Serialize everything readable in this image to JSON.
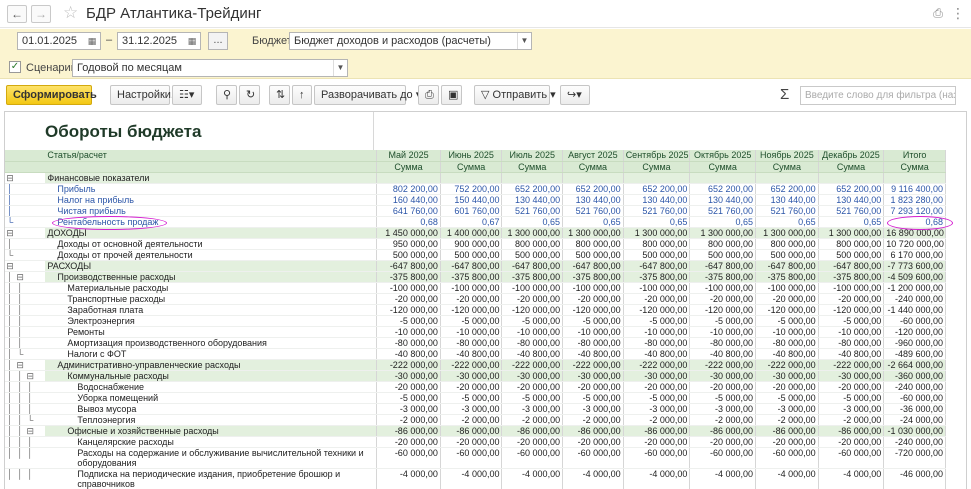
{
  "window": {
    "title": "БДР Атлантика-Трейдинг"
  },
  "params": {
    "date_from": "01.01.2025",
    "date_sep": "–",
    "date_to": "31.12.2025",
    "dots": "...",
    "budget_label": "Бюджет:",
    "budget_value": "Бюджет доходов и расходов (расчеты)",
    "scenario_label": "Сценарий:",
    "scenario_value": "Годовой по месяцам",
    "scenario_checked": true
  },
  "toolbar": {
    "generate": "Сформировать",
    "settings": "Настройки...",
    "expand": "Разворачивать до",
    "send": "Отправить",
    "sigma": "Σ",
    "filter_placeholder": "Введите слово для фильтра (название тов"
  },
  "report": {
    "title": "Обороты бюджета",
    "col_item": "Статья/расчет",
    "months": [
      "Май 2025",
      "Июнь 2025",
      "Июль 2025",
      "Август 2025",
      "Сентябрь 2025",
      "Октябрь 2025",
      "Ноябрь 2025",
      "Декабрь 2025",
      "Итого"
    ],
    "sub": "Сумма",
    "rows": [
      {
        "label": "Финансовые показатели",
        "values": [
          "",
          "",
          "",
          "",
          "",
          "",
          "",
          "",
          ""
        ]
      },
      {
        "label": "Прибыль",
        "values": [
          "802 200,00",
          "752 200,00",
          "652 200,00",
          "652 200,00",
          "652 200,00",
          "652 200,00",
          "652 200,00",
          "652 200,00",
          "9 116 400,00"
        ]
      },
      {
        "label": "Налог на прибыль",
        "values": [
          "160 440,00",
          "150 440,00",
          "130 440,00",
          "130 440,00",
          "130 440,00",
          "130 440,00",
          "130 440,00",
          "130 440,00",
          "1 823 280,00"
        ]
      },
      {
        "label": "Чистая прибыль",
        "values": [
          "641 760,00",
          "601 760,00",
          "521 760,00",
          "521 760,00",
          "521 760,00",
          "521 760,00",
          "521 760,00",
          "521 760,00",
          "7 293 120,00"
        ]
      },
      {
        "label": "Рентабельность продаж",
        "values": [
          "0,68",
          "0,67",
          "0,65",
          "0,65",
          "0,65",
          "0,65",
          "0,65",
          "0,65",
          "0,68"
        ]
      },
      {
        "label": "ДОХОДЫ",
        "values": [
          "1 450 000,00",
          "1 400 000,00",
          "1 300 000,00",
          "1 300 000,00",
          "1 300 000,00",
          "1 300 000,00",
          "1 300 000,00",
          "1 300 000,00",
          "16 890 000,00"
        ]
      },
      {
        "label": "Доходы от основной деятельности",
        "values": [
          "950 000,00",
          "900 000,00",
          "800 000,00",
          "800 000,00",
          "800 000,00",
          "800 000,00",
          "800 000,00",
          "800 000,00",
          "10 720 000,00"
        ]
      },
      {
        "label": "Доходы от прочей деятельности",
        "values": [
          "500 000,00",
          "500 000,00",
          "500 000,00",
          "500 000,00",
          "500 000,00",
          "500 000,00",
          "500 000,00",
          "500 000,00",
          "6 170 000,00"
        ]
      },
      {
        "label": "РАСХОДЫ",
        "values": [
          "-647 800,00",
          "-647 800,00",
          "-647 800,00",
          "-647 800,00",
          "-647 800,00",
          "-647 800,00",
          "-647 800,00",
          "-647 800,00",
          "-7 773 600,00"
        ]
      },
      {
        "label": "Производственные расходы",
        "values": [
          "-375 800,00",
          "-375 800,00",
          "-375 800,00",
          "-375 800,00",
          "-375 800,00",
          "-375 800,00",
          "-375 800,00",
          "-375 800,00",
          "-4 509 600,00"
        ]
      },
      {
        "label": "Материальные расходы",
        "values": [
          "-100 000,00",
          "-100 000,00",
          "-100 000,00",
          "-100 000,00",
          "-100 000,00",
          "-100 000,00",
          "-100 000,00",
          "-100 000,00",
          "-1 200 000,00"
        ]
      },
      {
        "label": "Транспортные расходы",
        "values": [
          "-20 000,00",
          "-20 000,00",
          "-20 000,00",
          "-20 000,00",
          "-20 000,00",
          "-20 000,00",
          "-20 000,00",
          "-20 000,00",
          "-240 000,00"
        ]
      },
      {
        "label": "Заработная плата",
        "values": [
          "-120 000,00",
          "-120 000,00",
          "-120 000,00",
          "-120 000,00",
          "-120 000,00",
          "-120 000,00",
          "-120 000,00",
          "-120 000,00",
          "-1 440 000,00"
        ]
      },
      {
        "label": "Электроэнергия",
        "values": [
          "-5 000,00",
          "-5 000,00",
          "-5 000,00",
          "-5 000,00",
          "-5 000,00",
          "-5 000,00",
          "-5 000,00",
          "-5 000,00",
          "-60 000,00"
        ]
      },
      {
        "label": "Ремонты",
        "values": [
          "-10 000,00",
          "-10 000,00",
          "-10 000,00",
          "-10 000,00",
          "-10 000,00",
          "-10 000,00",
          "-10 000,00",
          "-10 000,00",
          "-120 000,00"
        ]
      },
      {
        "label": "Амортизация производственного оборудования",
        "values": [
          "-80 000,00",
          "-80 000,00",
          "-80 000,00",
          "-80 000,00",
          "-80 000,00",
          "-80 000,00",
          "-80 000,00",
          "-80 000,00",
          "-960 000,00"
        ]
      },
      {
        "label": "Налоги с ФОТ",
        "values": [
          "-40 800,00",
          "-40 800,00",
          "-40 800,00",
          "-40 800,00",
          "-40 800,00",
          "-40 800,00",
          "-40 800,00",
          "-40 800,00",
          "-489 600,00"
        ]
      },
      {
        "label": "Административно-управленческие расходы",
        "values": [
          "-222 000,00",
          "-222 000,00",
          "-222 000,00",
          "-222 000,00",
          "-222 000,00",
          "-222 000,00",
          "-222 000,00",
          "-222 000,00",
          "-2 664 000,00"
        ]
      },
      {
        "label": "Коммунальные расходы",
        "values": [
          "-30 000,00",
          "-30 000,00",
          "-30 000,00",
          "-30 000,00",
          "-30 000,00",
          "-30 000,00",
          "-30 000,00",
          "-30 000,00",
          "-360 000,00"
        ]
      },
      {
        "label": "Водоснабжение",
        "values": [
          "-20 000,00",
          "-20 000,00",
          "-20 000,00",
          "-20 000,00",
          "-20 000,00",
          "-20 000,00",
          "-20 000,00",
          "-20 000,00",
          "-240 000,00"
        ]
      },
      {
        "label": "Уборка помещений",
        "values": [
          "-5 000,00",
          "-5 000,00",
          "-5 000,00",
          "-5 000,00",
          "-5 000,00",
          "-5 000,00",
          "-5 000,00",
          "-5 000,00",
          "-60 000,00"
        ]
      },
      {
        "label": "Вывоз мусора",
        "values": [
          "-3 000,00",
          "-3 000,00",
          "-3 000,00",
          "-3 000,00",
          "-3 000,00",
          "-3 000,00",
          "-3 000,00",
          "-3 000,00",
          "-36 000,00"
        ]
      },
      {
        "label": "Теплоэнергия",
        "values": [
          "-2 000,00",
          "-2 000,00",
          "-2 000,00",
          "-2 000,00",
          "-2 000,00",
          "-2 000,00",
          "-2 000,00",
          "-2 000,00",
          "-24 000,00"
        ]
      },
      {
        "label": "Офисные и хозяйственные расходы",
        "values": [
          "-86 000,00",
          "-86 000,00",
          "-86 000,00",
          "-86 000,00",
          "-86 000,00",
          "-86 000,00",
          "-86 000,00",
          "-86 000,00",
          "-1 030 000,00"
        ]
      },
      {
        "label": "Канцелярские расходы",
        "values": [
          "-20 000,00",
          "-20 000,00",
          "-20 000,00",
          "-20 000,00",
          "-20 000,00",
          "-20 000,00",
          "-20 000,00",
          "-20 000,00",
          "-240 000,00"
        ]
      },
      {
        "label": "Расходы на содержание и обслуживание вычислительной техники и оборудования",
        "values": [
          "-60 000,00",
          "-60 000,00",
          "-60 000,00",
          "-60 000,00",
          "-60 000,00",
          "-60 000,00",
          "-60 000,00",
          "-60 000,00",
          "-720 000,00"
        ]
      },
      {
        "label": "Подписка на периодические издания, приобретение брошюр и справочников",
        "values": [
          "-4 000,00",
          "-4 000,00",
          "-4 000,00",
          "-4 000,00",
          "-4 000,00",
          "-4 000,00",
          "-4 000,00",
          "-4 000,00",
          "-46 000,00"
        ]
      }
    ]
  }
}
